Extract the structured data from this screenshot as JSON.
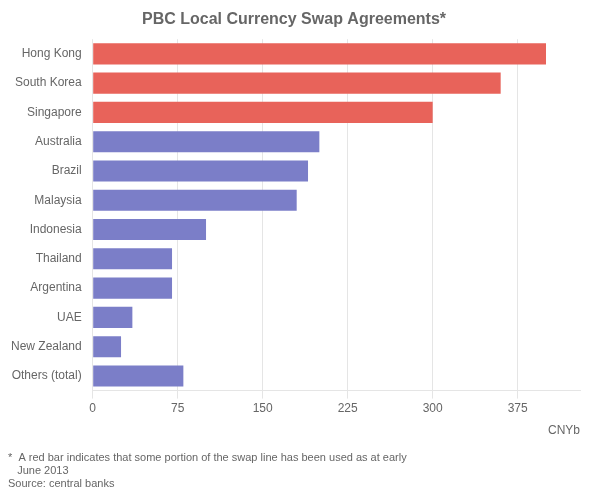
{
  "chart_data": {
    "type": "bar",
    "orientation": "horizontal",
    "title": "PBC Local Currency Swap Agreements*",
    "categories": [
      "Hong Kong",
      "South Korea",
      "Singapore",
      "Australia",
      "Brazil",
      "Malaysia",
      "Indonesia",
      "Thailand",
      "Argentina",
      "UAE",
      "New Zealand",
      "Others (total)"
    ],
    "values": [
      400,
      360,
      300,
      200,
      190,
      180,
      100,
      70,
      70,
      35,
      25,
      80
    ],
    "colors": [
      "#e8635a",
      "#e8635a",
      "#e8635a",
      "#7b7ec8",
      "#7b7ec8",
      "#7b7ec8",
      "#7b7ec8",
      "#7b7ec8",
      "#7b7ec8",
      "#7b7ec8",
      "#7b7ec8",
      "#7b7ec8"
    ],
    "xlabel": "CNYb",
    "xlim": [
      0,
      430
    ],
    "xticks": [
      0,
      75,
      150,
      225,
      300,
      375
    ],
    "grid": true,
    "annotations": [
      "*  A red bar indicates that some portion of the swap line has been used as at early",
      "   June 2013",
      "Source: central banks"
    ]
  }
}
